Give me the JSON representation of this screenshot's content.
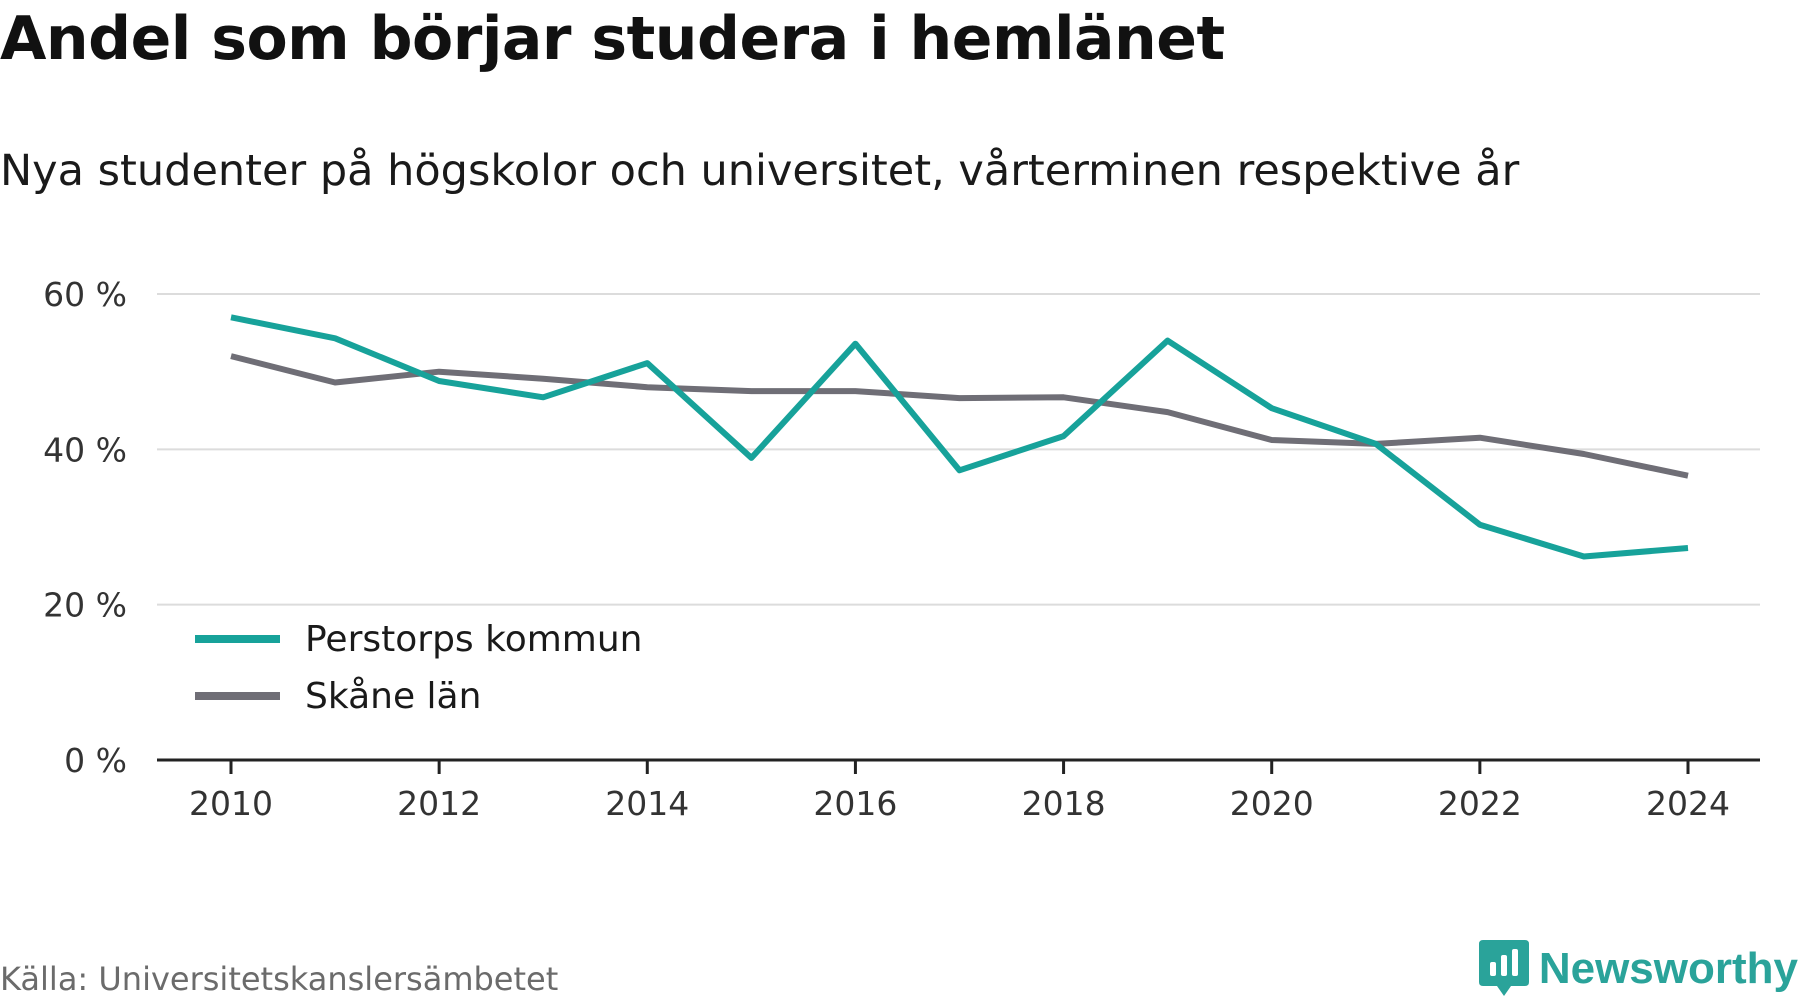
{
  "title": "Andel som börjar studera i hemlänet",
  "subtitle": "Nya studenter på högskolor och universitet, vårterminen respektive år",
  "source": "Källa: Universitetskanslersämbetet",
  "brand": {
    "name": "Newsworthy",
    "icon": "newsworthy-logo-icon",
    "color": "#2aa39a"
  },
  "chart_data": {
    "type": "line",
    "title": "Andel som börjar studera i hemlänet",
    "subtitle": "Nya studenter på högskolor och universitet, vårterminen respektive år",
    "x": [
      2010,
      2011,
      2012,
      2013,
      2014,
      2015,
      2016,
      2017,
      2018,
      2019,
      2020,
      2021,
      2022,
      2023,
      2024
    ],
    "xticks": [
      2010,
      2012,
      2014,
      2016,
      2018,
      2020,
      2022,
      2024
    ],
    "xtick_labels": [
      "2010",
      "2012",
      "2014",
      "2016",
      "2018",
      "2020",
      "2022",
      "2024"
    ],
    "yticks": [
      0,
      20,
      40,
      60
    ],
    "ytick_labels": [
      "0 %",
      "20 %",
      "40 %",
      "60 %"
    ],
    "ylim": [
      0,
      60
    ],
    "grid": true,
    "legend_position": "bottom-left",
    "series": [
      {
        "name": "Perstorps kommun",
        "color": "#17a29a",
        "values": [
          57.0,
          54.3,
          48.8,
          46.7,
          51.1,
          38.9,
          53.6,
          37.3,
          41.7,
          54.0,
          45.3,
          40.7,
          30.3,
          26.2,
          27.3
        ]
      },
      {
        "name": "Skåne län",
        "color": "#6f6e76",
        "values": [
          52.0,
          48.6,
          50.0,
          49.1,
          48.0,
          47.5,
          47.5,
          46.6,
          46.7,
          44.8,
          41.2,
          40.7,
          41.5,
          39.4,
          36.6
        ]
      }
    ]
  }
}
